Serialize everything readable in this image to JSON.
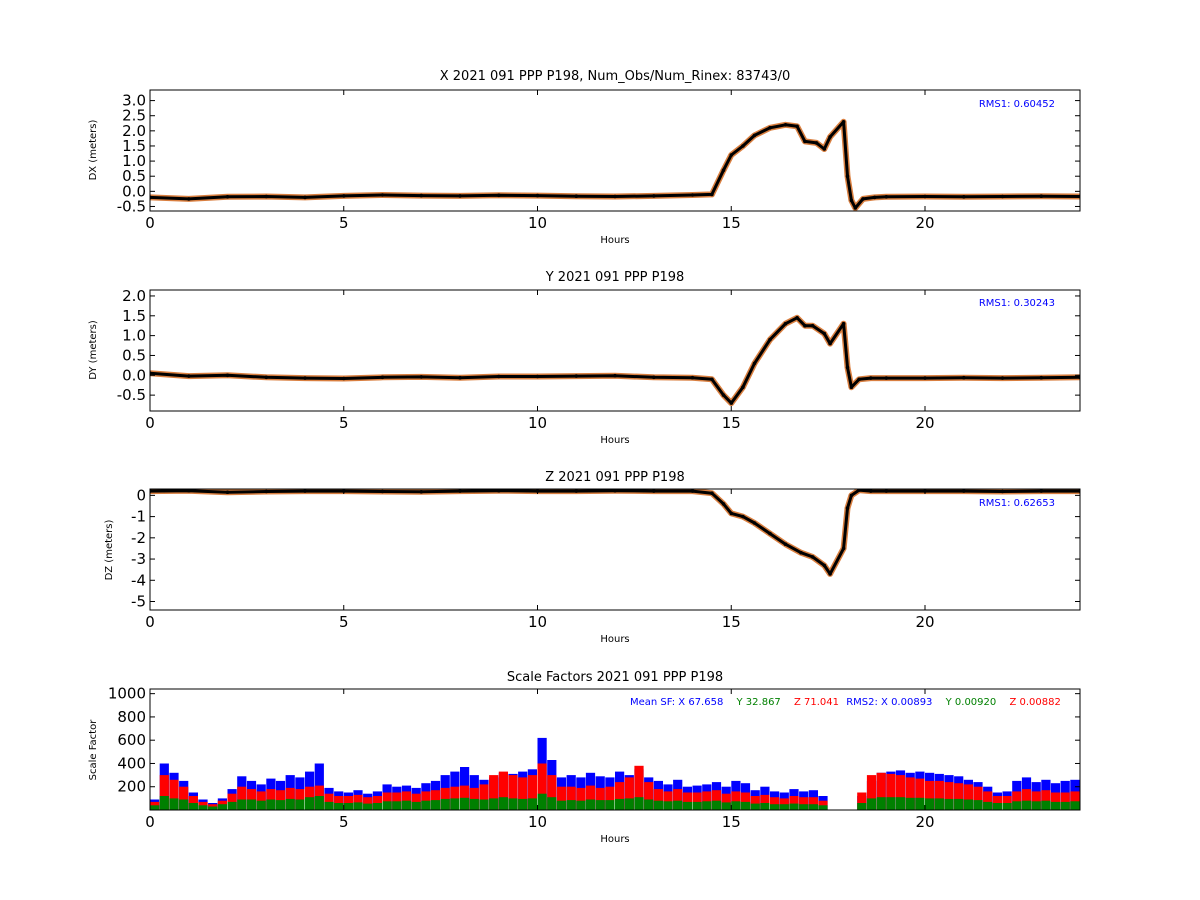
{
  "chart_data": [
    {
      "type": "scatter",
      "title": "X 2021 091 PPP  P198, Num_Obs/Num_Rinex: 83743/0",
      "xlabel": "Hours",
      "ylabel": "DX (meters)",
      "xlim": [
        0,
        24
      ],
      "ylim": [
        -0.65,
        3.35
      ],
      "xticks": [
        "0",
        "5",
        "10",
        "15",
        "20"
      ],
      "yticks": [
        "3.0",
        "2.5",
        "2.0",
        "1.5",
        "1.0",
        "0.5",
        "0.0",
        "-0.5"
      ],
      "annotation": "RMS1:  0.60452",
      "annotation_color": "#0000ff",
      "series_color": "#000000",
      "error_color": "#d2691e",
      "x": [
        0,
        1,
        2,
        3,
        4,
        5,
        6,
        7,
        8,
        9,
        10,
        11,
        12,
        13,
        14,
        14.5,
        14.8,
        15,
        15.3,
        15.6,
        16,
        16.4,
        16.7,
        16.9,
        17.2,
        17.4,
        17.55,
        17.9,
        18.0,
        18.1,
        18.2,
        18.4,
        18.7,
        19,
        20,
        21,
        22,
        23,
        24
      ],
      "y": [
        -0.2,
        -0.25,
        -0.18,
        -0.17,
        -0.2,
        -0.15,
        -0.12,
        -0.14,
        -0.15,
        -0.13,
        -0.14,
        -0.16,
        -0.17,
        -0.15,
        -0.12,
        -0.1,
        0.7,
        1.2,
        1.5,
        1.85,
        2.1,
        2.2,
        2.15,
        1.65,
        1.6,
        1.4,
        1.8,
        2.3,
        0.5,
        -0.3,
        -0.55,
        -0.25,
        -0.2,
        -0.18,
        -0.17,
        -0.18,
        -0.17,
        -0.16,
        -0.17
      ]
    },
    {
      "type": "scatter",
      "title": "Y 2021 091 PPP  P198",
      "xlabel": "Hours",
      "ylabel": "DY (meters)",
      "xlim": [
        0,
        24
      ],
      "ylim": [
        -0.9,
        2.15
      ],
      "xticks": [
        "0",
        "5",
        "10",
        "15",
        "20"
      ],
      "yticks": [
        "2.0",
        "1.5",
        "1.0",
        "0.5",
        "0.0",
        "-0.5"
      ],
      "annotation": "RMS1:  0.30243",
      "annotation_color": "#0000ff",
      "series_color": "#000000",
      "error_color": "#d2691e",
      "x": [
        0,
        1,
        2,
        3,
        4,
        5,
        6,
        7,
        8,
        9,
        10,
        11,
        12,
        13,
        14,
        14.5,
        14.8,
        15.0,
        15.3,
        15.6,
        16,
        16.4,
        16.7,
        16.9,
        17.1,
        17.4,
        17.55,
        17.9,
        18.0,
        18.1,
        18.3,
        18.6,
        19,
        20,
        21,
        22,
        23,
        24
      ],
      "y": [
        0.05,
        -0.02,
        0.0,
        -0.05,
        -0.07,
        -0.08,
        -0.05,
        -0.04,
        -0.06,
        -0.03,
        -0.03,
        -0.02,
        -0.01,
        -0.05,
        -0.06,
        -0.1,
        -0.5,
        -0.7,
        -0.3,
        0.3,
        0.9,
        1.3,
        1.45,
        1.25,
        1.25,
        1.05,
        0.8,
        1.3,
        0.2,
        -0.3,
        -0.1,
        -0.07,
        -0.07,
        -0.07,
        -0.06,
        -0.07,
        -0.06,
        -0.05
      ]
    },
    {
      "type": "scatter",
      "title": "Z 2021 091 PPP  P198",
      "xlabel": "Hours",
      "ylabel": "DZ (meters)",
      "xlim": [
        0,
        24
      ],
      "ylim": [
        -5.4,
        0.3
      ],
      "xticks": [
        "0",
        "5",
        "10",
        "15",
        "20"
      ],
      "yticks": [
        "0",
        "-1",
        "-2",
        "-3",
        "-4",
        "-5"
      ],
      "annotation": "RMS1:  0.62653",
      "annotation_color": "#0000ff",
      "series_color": "#000000",
      "error_color": "#d2691e",
      "x": [
        0,
        1,
        2,
        3,
        4,
        5,
        6,
        7,
        8,
        9,
        10,
        11,
        12,
        13,
        14,
        14.5,
        14.8,
        15.0,
        15.3,
        15.6,
        16,
        16.4,
        16.8,
        17.1,
        17.4,
        17.55,
        17.9,
        18.0,
        18.1,
        18.3,
        18.6,
        19,
        20,
        21,
        22,
        23,
        24
      ],
      "y": [
        0.2,
        0.22,
        0.15,
        0.18,
        0.2,
        0.2,
        0.18,
        0.17,
        0.2,
        0.22,
        0.2,
        0.2,
        0.22,
        0.2,
        0.2,
        0.1,
        -0.4,
        -0.85,
        -1.0,
        -1.3,
        -1.8,
        -2.3,
        -2.7,
        -2.9,
        -3.3,
        -3.7,
        -2.5,
        -0.6,
        0.0,
        0.25,
        0.2,
        0.2,
        0.2,
        0.2,
        0.18,
        0.2,
        0.2
      ]
    },
    {
      "type": "bar",
      "title": "Scale Factors 2021 091 PPP  P198",
      "xlabel": "Hours",
      "ylabel": "Scale Factor",
      "xlim": [
        0,
        24
      ],
      "ylim": [
        0,
        1040
      ],
      "xticks": [
        "0",
        "5",
        "10",
        "15",
        "20"
      ],
      "yticks": [
        "1000",
        "800",
        "600",
        "400",
        "200"
      ],
      "stats": [
        {
          "text": "Mean SF: X  67.658",
          "color": "#0000ff"
        },
        {
          "text": "Y  32.867",
          "color": "#008000"
        },
        {
          "text": "Z  71.041",
          "color": "#ff0000"
        },
        {
          "text": "RMS2: X  0.00893",
          "color": "#0000ff"
        },
        {
          "text": "Y  0.00920",
          "color": "#008000"
        },
        {
          "text": "Z  0.00882",
          "color": "#ff0000"
        }
      ],
      "series": [
        {
          "color": "#0000ff",
          "x": [
            0.0,
            0.25,
            0.5,
            0.75,
            1.0,
            1.25,
            1.5,
            1.75,
            2.0,
            2.25,
            2.5,
            2.75,
            3.0,
            3.25,
            3.5,
            3.75,
            4.0,
            4.25,
            4.5,
            4.75,
            5.0,
            5.25,
            5.5,
            5.75,
            6.0,
            6.25,
            6.5,
            6.75,
            7.0,
            7.25,
            7.5,
            7.75,
            8.0,
            8.25,
            8.5,
            8.75,
            9.0,
            9.25,
            9.5,
            9.75,
            10.0,
            10.25,
            10.5,
            10.75,
            11.0,
            11.25,
            11.5,
            11.75,
            12.0,
            12.25,
            12.5,
            12.75,
            13.0,
            13.25,
            13.5,
            13.75,
            14.0,
            14.25,
            14.5,
            14.75,
            15.0,
            15.25,
            15.5,
            15.75,
            16.0,
            16.25,
            16.5,
            16.75,
            17.0,
            17.25,
            17.5,
            17.75,
            18.0,
            18.25,
            18.5,
            18.75,
            19.0,
            19.25,
            19.5,
            19.75,
            20.0,
            20.25,
            20.5,
            20.75,
            21.0,
            21.25,
            21.5,
            21.75,
            22.0,
            22.25,
            22.5,
            22.75,
            23.0,
            23.25,
            23.5,
            23.75
          ],
          "values": [
            90,
            400,
            320,
            250,
            150,
            90,
            60,
            100,
            180,
            290,
            250,
            220,
            270,
            250,
            300,
            280,
            330,
            400,
            190,
            160,
            150,
            170,
            140,
            160,
            220,
            200,
            210,
            190,
            230,
            250,
            300,
            330,
            370,
            300,
            260,
            280,
            320,
            310,
            330,
            350,
            620,
            430,
            280,
            300,
            280,
            320,
            290,
            280,
            330,
            300,
            350,
            280,
            250,
            220,
            260,
            200,
            210,
            220,
            240,
            200,
            250,
            230,
            170,
            200,
            160,
            150,
            180,
            160,
            170,
            120,
            0,
            0,
            0,
            120,
            250,
            320,
            330,
            340,
            320,
            330,
            320,
            310,
            300,
            290,
            260,
            240,
            200,
            150,
            160,
            250,
            280,
            240,
            260,
            230,
            250,
            260
          ]
        },
        {
          "color": "#ff0000",
          "x": [
            0.0,
            0.25,
            0.5,
            0.75,
            1.0,
            1.25,
            1.5,
            1.75,
            2.0,
            2.25,
            2.5,
            2.75,
            3.0,
            3.25,
            3.5,
            3.75,
            4.0,
            4.25,
            4.5,
            4.75,
            5.0,
            5.25,
            5.5,
            5.75,
            6.0,
            6.25,
            6.5,
            6.75,
            7.0,
            7.25,
            7.5,
            7.75,
            8.0,
            8.25,
            8.5,
            8.75,
            9.0,
            9.25,
            9.5,
            9.75,
            10.0,
            10.25,
            10.5,
            10.75,
            11.0,
            11.25,
            11.5,
            11.75,
            12.0,
            12.25,
            12.5,
            12.75,
            13.0,
            13.25,
            13.5,
            13.75,
            14.0,
            14.25,
            14.5,
            14.75,
            15.0,
            15.25,
            15.5,
            15.75,
            16.0,
            16.25,
            16.5,
            16.75,
            17.0,
            17.25,
            17.5,
            17.75,
            18.0,
            18.25,
            18.5,
            18.75,
            19.0,
            19.25,
            19.5,
            19.75,
            20.0,
            20.25,
            20.5,
            20.75,
            21.0,
            21.25,
            21.5,
            21.75,
            22.0,
            22.25,
            22.5,
            22.75,
            23.0,
            23.25,
            23.5,
            23.75
          ],
          "values": [
            70,
            300,
            260,
            200,
            120,
            70,
            50,
            80,
            140,
            200,
            180,
            160,
            180,
            170,
            190,
            180,
            200,
            210,
            140,
            120,
            120,
            130,
            110,
            120,
            150,
            150,
            160,
            140,
            160,
            170,
            190,
            200,
            210,
            190,
            220,
            300,
            330,
            300,
            280,
            300,
            400,
            300,
            200,
            200,
            190,
            210,
            190,
            200,
            240,
            280,
            380,
            240,
            180,
            160,
            180,
            150,
            150,
            160,
            170,
            140,
            160,
            150,
            120,
            130,
            110,
            100,
            120,
            110,
            110,
            80,
            0,
            0,
            0,
            150,
            300,
            320,
            310,
            300,
            280,
            270,
            250,
            250,
            240,
            230,
            220,
            200,
            160,
            120,
            120,
            160,
            180,
            160,
            170,
            150,
            150,
            160
          ]
        },
        {
          "color": "#008000",
          "x": [
            0.0,
            0.25,
            0.5,
            0.75,
            1.0,
            1.25,
            1.5,
            1.75,
            2.0,
            2.25,
            2.5,
            2.75,
            3.0,
            3.25,
            3.5,
            3.75,
            4.0,
            4.25,
            4.5,
            4.75,
            5.0,
            5.25,
            5.5,
            5.75,
            6.0,
            6.25,
            6.5,
            6.75,
            7.0,
            7.25,
            7.5,
            7.75,
            8.0,
            8.25,
            8.5,
            8.75,
            9.0,
            9.25,
            9.5,
            9.75,
            10.0,
            10.25,
            10.5,
            10.75,
            11.0,
            11.25,
            11.5,
            11.75,
            12.0,
            12.25,
            12.5,
            12.75,
            13.0,
            13.25,
            13.5,
            13.75,
            14.0,
            14.25,
            14.5,
            14.75,
            15.0,
            15.25,
            15.5,
            15.75,
            16.0,
            16.25,
            16.5,
            16.75,
            17.0,
            17.25,
            17.5,
            17.75,
            18.0,
            18.25,
            18.5,
            18.75,
            19.0,
            19.25,
            19.5,
            19.75,
            20.0,
            20.25,
            20.5,
            20.75,
            21.0,
            21.25,
            21.5,
            21.75,
            22.0,
            22.25,
            22.5,
            22.75,
            23.0,
            23.25,
            23.5,
            23.75
          ],
          "values": [
            40,
            120,
            100,
            90,
            60,
            40,
            30,
            50,
            70,
            90,
            90,
            80,
            90,
            85,
            95,
            90,
            110,
            120,
            70,
            60,
            60,
            65,
            55,
            60,
            75,
            75,
            80,
            70,
            80,
            85,
            95,
            100,
            105,
            95,
            90,
            100,
            110,
            100,
            95,
            100,
            140,
            110,
            80,
            85,
            80,
            90,
            85,
            85,
            95,
            100,
            110,
            90,
            80,
            75,
            80,
            70,
            70,
            75,
            80,
            65,
            75,
            70,
            55,
            60,
            50,
            50,
            55,
            50,
            50,
            40,
            0,
            0,
            0,
            60,
            100,
            110,
            110,
            110,
            105,
            105,
            100,
            100,
            95,
            95,
            90,
            85,
            70,
            60,
            60,
            75,
            80,
            75,
            80,
            70,
            70,
            75
          ]
        }
      ]
    }
  ]
}
